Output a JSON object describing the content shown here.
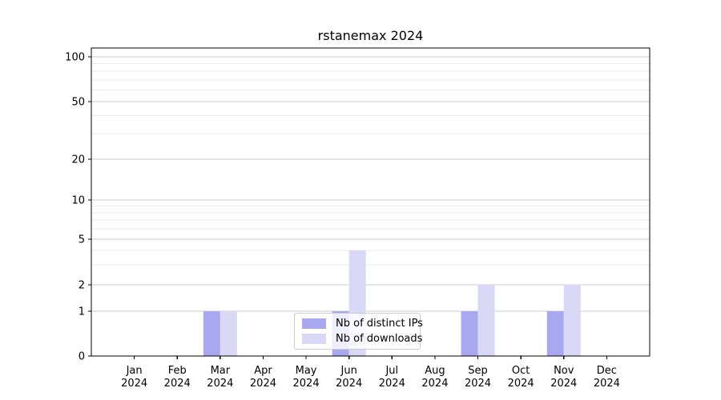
{
  "chart_data": {
    "type": "bar",
    "title": "rstanemax 2024",
    "categories": [
      "Jan 2024",
      "Feb 2024",
      "Mar 2024",
      "Apr 2024",
      "May 2024",
      "Jun 2024",
      "Jul 2024",
      "Aug 2024",
      "Sep 2024",
      "Oct 2024",
      "Nov 2024",
      "Dec 2024"
    ],
    "series": [
      {
        "name": "Nb of distinct IPs",
        "color": "#a8a8f0",
        "values": [
          0,
          0,
          1,
          0,
          0,
          1,
          0,
          0,
          1,
          0,
          1,
          0
        ]
      },
      {
        "name": "Nb of downloads",
        "color": "#d9d9f7",
        "values": [
          0,
          0,
          1,
          0,
          0,
          4,
          0,
          0,
          2,
          0,
          2,
          0
        ]
      }
    ],
    "xlabel": "",
    "ylabel": "",
    "yscale": "log-like",
    "ylim": [
      0,
      130
    ],
    "y_tick_values": [
      0,
      1,
      2,
      5,
      10,
      20,
      50,
      100
    ],
    "y_tick_labels": [
      "0",
      "1",
      "2",
      "5",
      "10",
      "20",
      "50",
      "100"
    ],
    "y_minor_gridline_values": [
      3,
      4,
      6,
      7,
      8,
      9,
      30,
      40,
      60,
      70,
      80,
      90
    ],
    "grid": true,
    "legend_position": "lower center",
    "colors": {
      "axis": "#000000",
      "major_grid": "#cccccc",
      "minor_grid": "#ebebeb",
      "tick_text": "#000000",
      "background": "#ffffff"
    }
  }
}
